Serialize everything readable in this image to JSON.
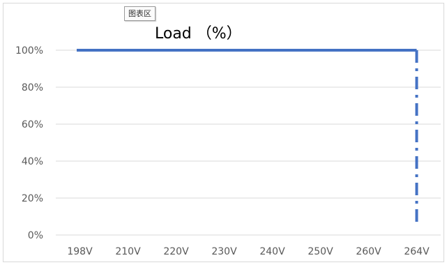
{
  "tooltip": "图表区",
  "chart_data": {
    "type": "line",
    "title": "Load （%）",
    "categories": [
      "198V",
      "210V",
      "220V",
      "230V",
      "240V",
      "250V",
      "260V",
      "264V"
    ],
    "series": [
      {
        "values": [
          100,
          100,
          100,
          100,
          100,
          100,
          100,
          100
        ],
        "color": "#4472c4"
      }
    ],
    "drop": {
      "from": 100,
      "to": 0,
      "at": "264V",
      "style": "dash-dot"
    },
    "ylim": [
      0,
      100
    ],
    "yticks": [
      "0%",
      "20%",
      "40%",
      "60%",
      "80%",
      "100%"
    ],
    "grid": true,
    "legend": false
  }
}
